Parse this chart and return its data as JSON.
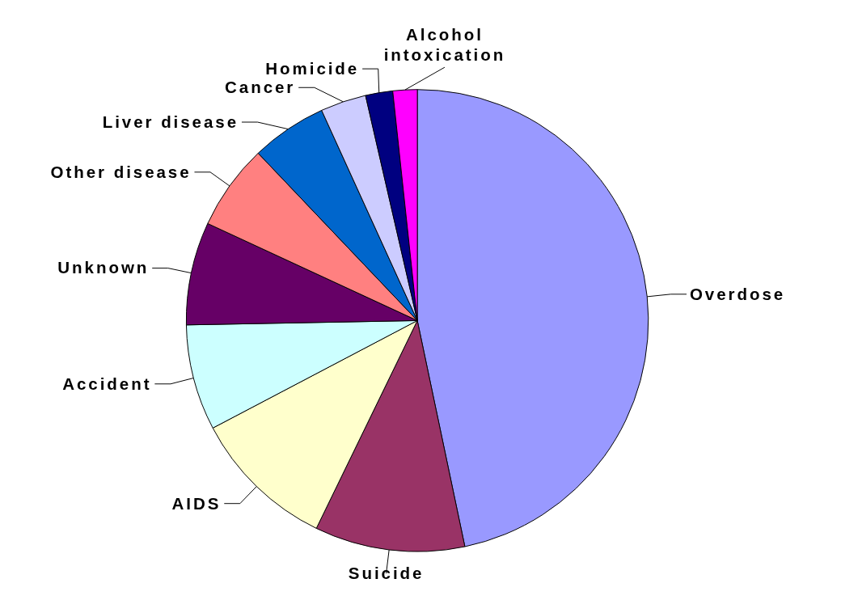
{
  "chart_data": {
    "type": "pie",
    "categories": [
      "Overdose",
      "Suicide",
      "AIDS",
      "Accident",
      "Unknown",
      "Other disease",
      "Liver disease",
      "Cancer",
      "Homicide",
      "Alcohol intoxication"
    ],
    "values": [
      46.7,
      10.5,
      10.1,
      7.4,
      7.2,
      6.0,
      5.3,
      3.2,
      1.9,
      1.7
    ],
    "colors": [
      "#9999ff",
      "#993366",
      "#ffffcc",
      "#ccffff",
      "#660066",
      "#ff8080",
      "#0066cc",
      "#ccccff",
      "#000080",
      "#ff00ff"
    ],
    "legend": false
  }
}
